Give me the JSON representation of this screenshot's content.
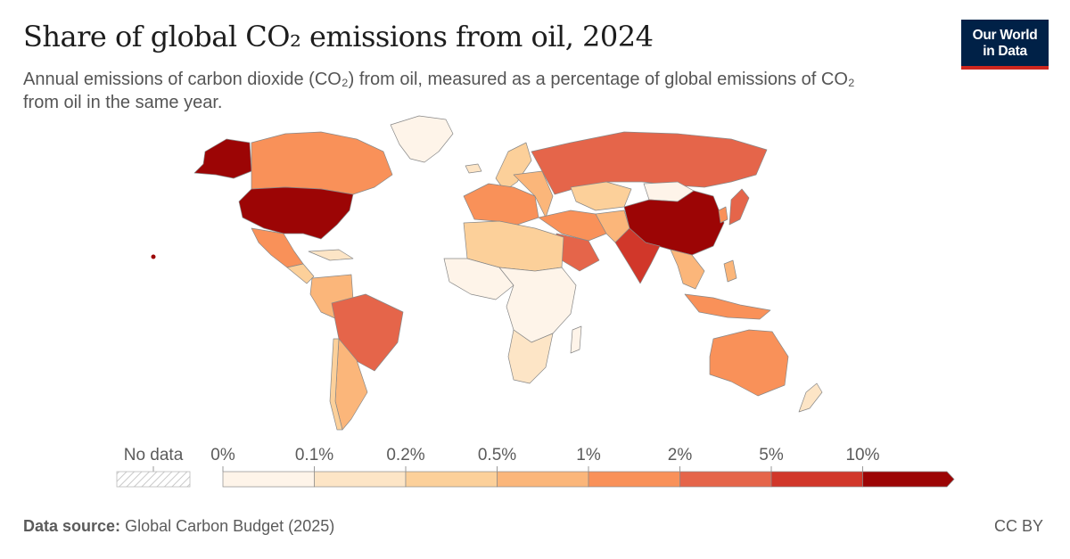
{
  "title": "Share of global CO₂ emissions from oil, 2024",
  "subtitle": "Annual emissions of carbon dioxide (CO₂) from oil, measured as a percentage of global emissions of CO₂ from oil in the same year.",
  "logo": {
    "line1": "Our World",
    "line2": "in Data",
    "bg": "#002147",
    "accent": "#ce261e"
  },
  "legend": {
    "no_data_label": "No data",
    "bins": [
      {
        "label": "0%",
        "color": "#fef4e9"
      },
      {
        "label": "0.1%",
        "color": "#fde5c6"
      },
      {
        "label": "0.2%",
        "color": "#fcd09a"
      },
      {
        "label": "0.5%",
        "color": "#fbb67a"
      },
      {
        "label": "1%",
        "color": "#f99159"
      },
      {
        "label": "2%",
        "color": "#e5654a"
      },
      {
        "label": "5%",
        "color": "#d1372a"
      },
      {
        "label": "10%",
        "color": "#9c0505"
      }
    ]
  },
  "map_data": {
    "type": "choropleth",
    "metric": "Share of global CO₂ emissions from oil",
    "year": "2024",
    "regions": [
      {
        "name": "United States",
        "bin": "10%+"
      },
      {
        "name": "China",
        "bin": "10%+"
      },
      {
        "name": "India",
        "bin": "5–10%"
      },
      {
        "name": "Russia",
        "bin": "2–5%"
      },
      {
        "name": "Japan",
        "bin": "2–5%"
      },
      {
        "name": "Saudi Arabia",
        "bin": "2–5%"
      },
      {
        "name": "Brazil",
        "bin": "2–5%"
      },
      {
        "name": "Canada",
        "bin": "1–2%"
      },
      {
        "name": "Mexico",
        "bin": "1–2%"
      },
      {
        "name": "Australia",
        "bin": "1–2%"
      },
      {
        "name": "Iran",
        "bin": "1–2%"
      },
      {
        "name": "Germany",
        "bin": "1–2%"
      },
      {
        "name": "Kazakhstan",
        "bin": "0.2–0.5%"
      },
      {
        "name": "Argentina",
        "bin": "0.5–1%"
      },
      {
        "name": "Mongolia",
        "bin": "0–0.1%"
      },
      {
        "name": "Greenland",
        "bin": "0–0.1%"
      }
    ]
  },
  "footer": {
    "source_label": "Data source:",
    "source_text": "Global Carbon Budget (2025)",
    "license": "CC BY"
  }
}
